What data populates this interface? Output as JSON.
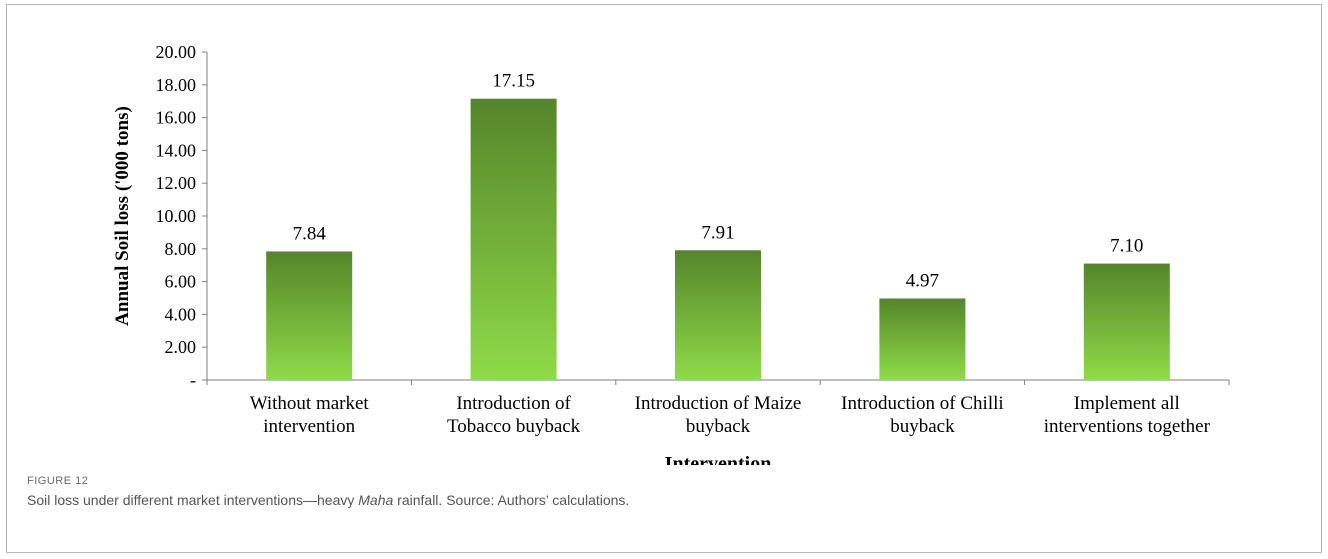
{
  "chart_data": {
    "type": "bar",
    "categories": [
      [
        "Without market",
        "intervention"
      ],
      [
        "Introduction of",
        "Tobacco buyback"
      ],
      [
        "Introduction of Maize",
        "buyback"
      ],
      [
        "Introduction of Chilli",
        "buyback"
      ],
      [
        "Implement all",
        "interventions together"
      ]
    ],
    "values": [
      7.84,
      17.15,
      7.91,
      4.97,
      7.1
    ],
    "value_labels": [
      "7.84",
      "17.15",
      "7.91",
      "4.97",
      "7.10"
    ],
    "xlabel": "Intervention",
    "ylabel": "Annual Soil loss ('000 tons)",
    "ylim": [
      0,
      20
    ],
    "y_ticks": [
      {
        "value": 0,
        "label": "-"
      },
      {
        "value": 2,
        "label": "2.00"
      },
      {
        "value": 4,
        "label": "4.00"
      },
      {
        "value": 6,
        "label": "6.00"
      },
      {
        "value": 8,
        "label": "8.00"
      },
      {
        "value": 10,
        "label": "10.00"
      },
      {
        "value": 12,
        "label": "12.00"
      },
      {
        "value": 14,
        "label": "14.00"
      },
      {
        "value": 16,
        "label": "16.00"
      },
      {
        "value": 18,
        "label": "18.00"
      },
      {
        "value": 20,
        "label": "20.00"
      }
    ],
    "grid": false,
    "bar_color_top": "#55852a",
    "bar_color_bottom": "#8fdb48"
  },
  "caption": {
    "label": "FIGURE 12",
    "text_before": "Soil loss under different market interventions—heavy ",
    "text_italic": "Maha",
    "text_after": " rainfall. Source: Authors’ calculations."
  }
}
